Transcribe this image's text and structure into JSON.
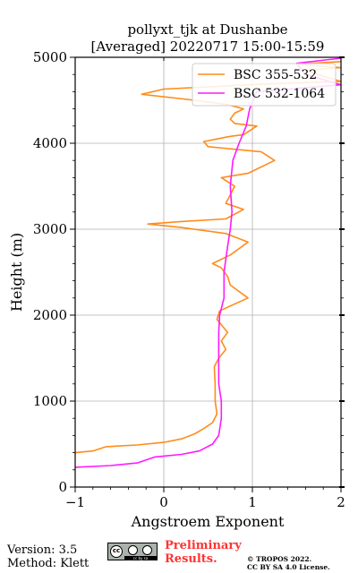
{
  "chart_data": {
    "type": "line",
    "title": "pollyxt_tjk at Dushanbe",
    "subtitle": "[Averaged] 20220717 15:00-15:59",
    "xlabel": "Angstroem Exponent",
    "ylabel": "Height (m)",
    "xlim": [
      -1,
      2
    ],
    "ylim": [
      0,
      5000
    ],
    "xticks": [
      "−1",
      "0",
      "1",
      "2"
    ],
    "yticks": [
      "0",
      "1000",
      "2000",
      "3000",
      "4000",
      "5000"
    ],
    "grid": true,
    "legend_position": "top-right",
    "series": [
      {
        "name": "BSC 355-532",
        "color": "#ff8c1a",
        "points": [
          [
            -1.0,
            400
          ],
          [
            -0.8,
            420
          ],
          [
            -0.65,
            470
          ],
          [
            -0.3,
            490
          ],
          [
            0.0,
            520
          ],
          [
            0.2,
            560
          ],
          [
            0.35,
            620
          ],
          [
            0.45,
            680
          ],
          [
            0.55,
            750
          ],
          [
            0.6,
            850
          ],
          [
            0.58,
            1000
          ],
          [
            0.58,
            1200
          ],
          [
            0.57,
            1400
          ],
          [
            0.62,
            1500
          ],
          [
            0.7,
            1600
          ],
          [
            0.65,
            1700
          ],
          [
            0.72,
            1800
          ],
          [
            0.6,
            1950
          ],
          [
            0.63,
            2050
          ],
          [
            0.95,
            2200
          ],
          [
            0.75,
            2350
          ],
          [
            0.72,
            2450
          ],
          [
            0.65,
            2550
          ],
          [
            0.55,
            2600
          ],
          [
            0.75,
            2700
          ],
          [
            0.95,
            2850
          ],
          [
            0.7,
            2950
          ],
          [
            0.2,
            3020
          ],
          [
            -0.18,
            3060
          ],
          [
            0.2,
            3090
          ],
          [
            0.7,
            3120
          ],
          [
            0.9,
            3230
          ],
          [
            0.7,
            3300
          ],
          [
            0.75,
            3400
          ],
          [
            0.8,
            3500
          ],
          [
            0.65,
            3600
          ],
          [
            0.95,
            3650
          ],
          [
            1.25,
            3800
          ],
          [
            1.1,
            3900
          ],
          [
            0.5,
            3960
          ],
          [
            0.45,
            4020
          ],
          [
            0.75,
            4080
          ],
          [
            0.9,
            4100
          ],
          [
            1.05,
            4200
          ],
          [
            0.8,
            4230
          ],
          [
            0.75,
            4280
          ],
          [
            0.8,
            4350
          ],
          [
            0.9,
            4400
          ],
          [
            0.72,
            4450
          ],
          [
            0.35,
            4500
          ],
          [
            -0.25,
            4570
          ],
          [
            0.0,
            4630
          ],
          [
            0.6,
            4660
          ],
          [
            0.95,
            4680
          ],
          [
            1.4,
            4700
          ],
          [
            2.0,
            4720
          ],
          [
            1.8,
            4780
          ],
          [
            1.6,
            4850
          ],
          [
            2.0,
            4880
          ],
          [
            1.5,
            4920
          ],
          [
            2.0,
            4950
          ]
        ]
      },
      {
        "name": "BSC 532-1064",
        "color": "#ff1aff",
        "points": [
          [
            -1.0,
            230
          ],
          [
            -0.6,
            250
          ],
          [
            -0.3,
            280
          ],
          [
            -0.1,
            350
          ],
          [
            0.2,
            380
          ],
          [
            0.4,
            420
          ],
          [
            0.55,
            500
          ],
          [
            0.62,
            600
          ],
          [
            0.65,
            800
          ],
          [
            0.65,
            1000
          ],
          [
            0.62,
            1200
          ],
          [
            0.62,
            1500
          ],
          [
            0.62,
            1800
          ],
          [
            0.63,
            2000
          ],
          [
            0.68,
            2200
          ],
          [
            0.68,
            2500
          ],
          [
            0.72,
            2800
          ],
          [
            0.75,
            3000
          ],
          [
            0.77,
            3200
          ],
          [
            0.75,
            3500
          ],
          [
            0.78,
            3800
          ],
          [
            0.85,
            4000
          ],
          [
            0.93,
            4200
          ],
          [
            0.97,
            4400
          ],
          [
            1.05,
            4600
          ],
          [
            2.0,
            4680
          ],
          [
            1.6,
            4800
          ],
          [
            1.5,
            4930
          ],
          [
            2.0,
            4990
          ]
        ]
      }
    ]
  },
  "footer": {
    "version": "Version: 3.5",
    "method": "Method: Klett",
    "preliminary_line1": "Preliminary",
    "preliminary_line2": "Results.",
    "copyright_line1": "© TROPOS 2022.",
    "copyright_line2": "CC BY SA 4.0 License.",
    "cc_badge": "cc by sa",
    "preliminary_color": "#ff3333"
  }
}
